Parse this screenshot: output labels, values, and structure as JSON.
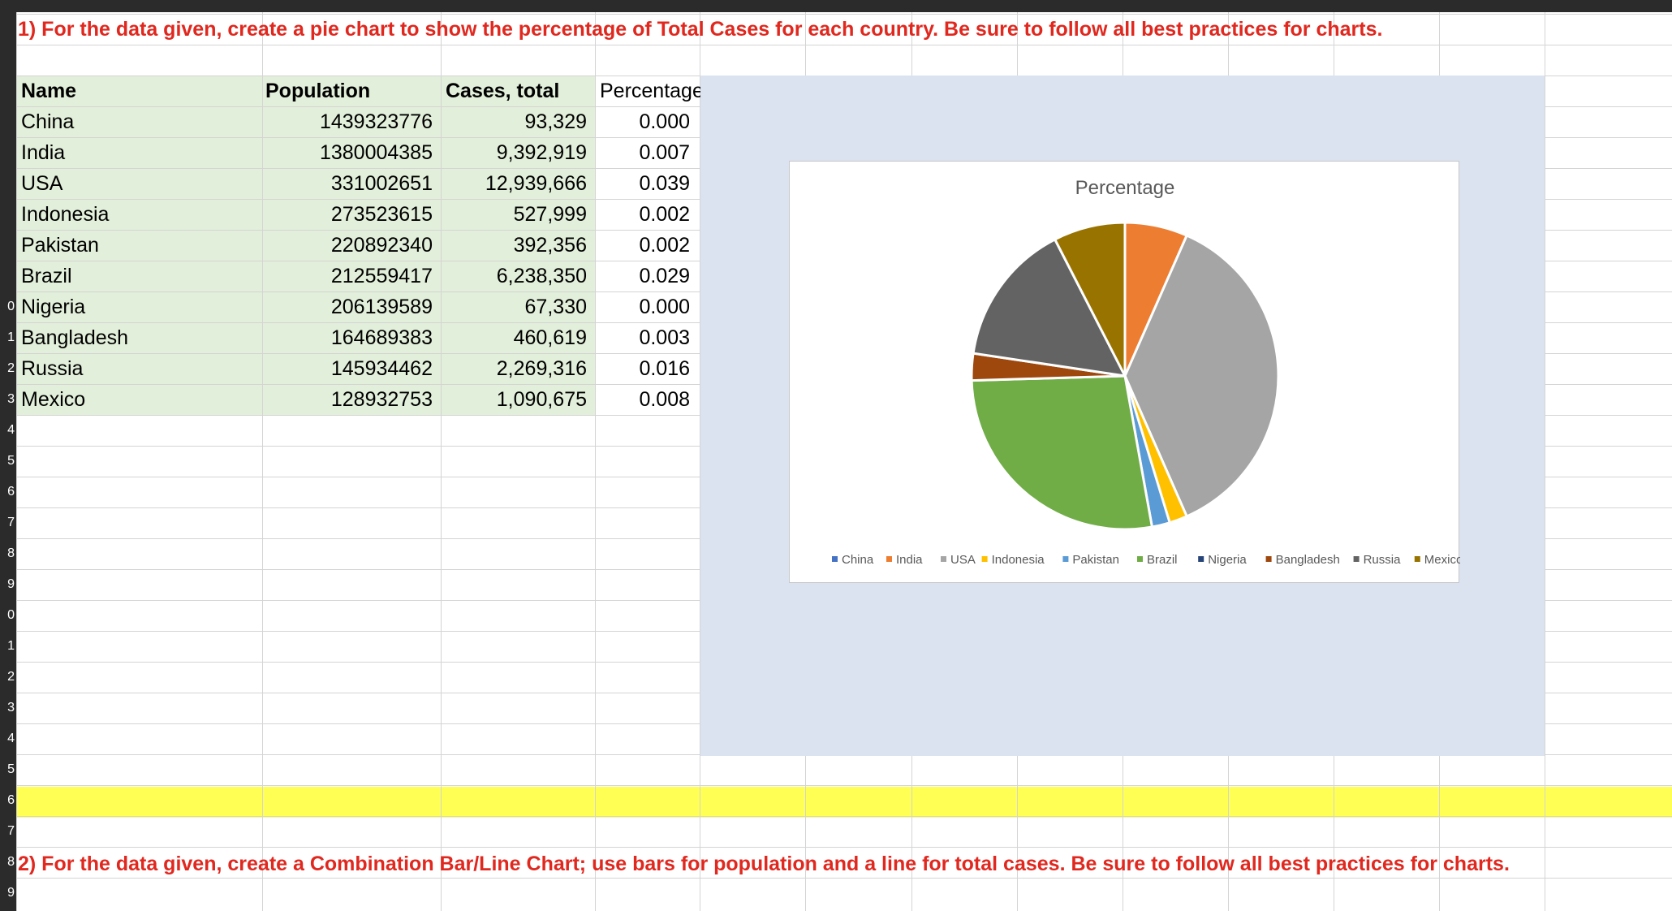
{
  "tasks": {
    "task1": "1) For the data given, create a pie chart to show the percentage of Total Cases for each country. Be sure to follow all best practices for charts.",
    "task2": "2) For the data given, create a Combination Bar/Line Chart; use bars for population and a line for total cases. Be sure to follow all best practices for charts."
  },
  "table": {
    "headers": [
      "Name",
      "Population",
      "Cases, total",
      "Percentage"
    ],
    "rows": [
      {
        "name": "China",
        "population": "1439323776",
        "cases": "93,329",
        "pct": "0.000"
      },
      {
        "name": "India",
        "population": "1380004385",
        "cases": "9,392,919",
        "pct": "0.007"
      },
      {
        "name": "USA",
        "population": "331002651",
        "cases": "12,939,666",
        "pct": "0.039"
      },
      {
        "name": "Indonesia",
        "population": "273523615",
        "cases": "527,999",
        "pct": "0.002"
      },
      {
        "name": "Pakistan",
        "population": "220892340",
        "cases": "392,356",
        "pct": "0.002"
      },
      {
        "name": "Brazil",
        "population": "212559417",
        "cases": "6,238,350",
        "pct": "0.029"
      },
      {
        "name": "Nigeria",
        "population": "206139589",
        "cases": "67,330",
        "pct": "0.000"
      },
      {
        "name": "Bangladesh",
        "population": "164689383",
        "cases": "460,619",
        "pct": "0.003"
      },
      {
        "name": "Russia",
        "population": "145934462",
        "cases": "2,269,316",
        "pct": "0.016"
      },
      {
        "name": "Mexico",
        "population": "128932753",
        "cases": "1,090,675",
        "pct": "0.008"
      }
    ]
  },
  "row_stubs": [
    "0",
    "1",
    "2",
    "3",
    "4",
    "5",
    "6",
    "7",
    "8",
    "9",
    "0",
    "1",
    "2",
    "3",
    "4",
    "5",
    "6",
    "7",
    "8",
    "9"
  ],
  "colors": {
    "header_band": "#2b2b2b",
    "table_fill": "#e2efda",
    "chart_area": "#dbe2f0",
    "highlight_row": "#ffff54",
    "task_text": "#e0281f",
    "gridline": "#d4d4d4"
  },
  "chart_data": {
    "type": "pie",
    "title": "Percentage",
    "categories": [
      "China",
      "India",
      "USA",
      "Indonesia",
      "Pakistan",
      "Brazil",
      "Nigeria",
      "Bangladesh",
      "Russia",
      "Mexico"
    ],
    "values": [
      0.0,
      0.007,
      0.039,
      0.002,
      0.002,
      0.029,
      0.0,
      0.003,
      0.016,
      0.008
    ],
    "colors": [
      "#4472c4",
      "#ed7d31",
      "#a5a5a5",
      "#ffc000",
      "#5b9bd5",
      "#70ad47",
      "#264478",
      "#9e480e",
      "#636363",
      "#997300"
    ],
    "legend": "bottom"
  }
}
